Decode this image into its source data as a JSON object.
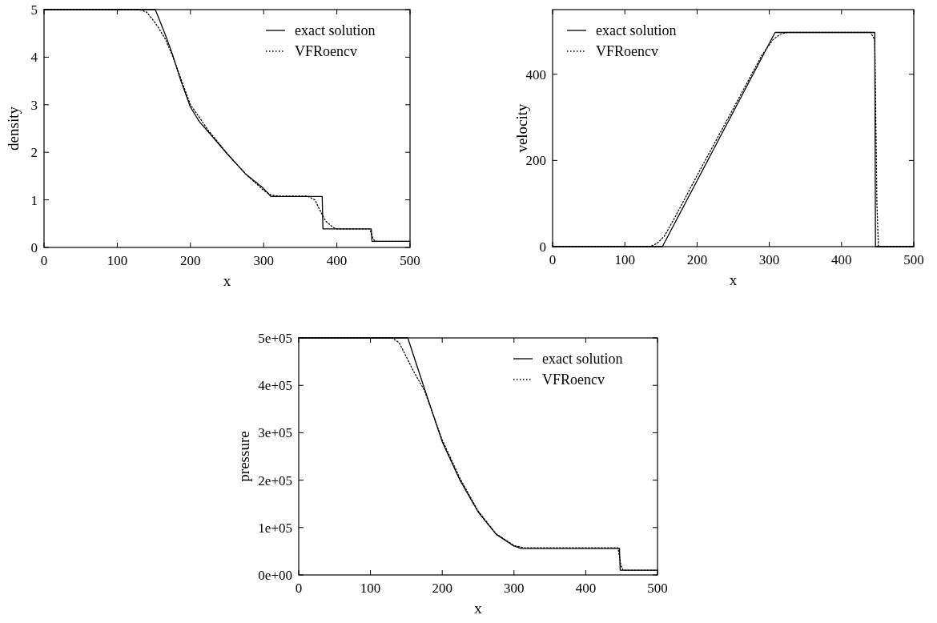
{
  "chart_data": [
    {
      "type": "line",
      "xlabel": "x",
      "ylabel": "density",
      "xlim": [
        0,
        500
      ],
      "ylim": [
        0,
        5
      ],
      "xticks": [
        0,
        100,
        200,
        300,
        400,
        500
      ],
      "yticks": [
        0,
        1,
        2,
        3,
        4,
        5
      ],
      "legend": "top right",
      "grid": false,
      "series": [
        {
          "name": "exact solution",
          "color": "#000000",
          "line_style": "solid",
          "x": [
            0,
            152,
            165,
            175,
            187,
            200,
            212,
            225,
            250,
            275,
            300,
            310,
            380,
            381,
            447,
            448,
            500
          ],
          "values": [
            5,
            5,
            4.5,
            4.08,
            3.5,
            2.95,
            2.65,
            2.42,
            1.97,
            1.55,
            1.24,
            1.07,
            1.07,
            0.39,
            0.39,
            0.13,
            0.13
          ]
        },
        {
          "name": "VFRoencv",
          "color": "#000000",
          "line_style": "dotted",
          "x": [
            0,
            130,
            140,
            148,
            155,
            165,
            175,
            200,
            225,
            250,
            275,
            300,
            310,
            320,
            360,
            370,
            378,
            385,
            395,
            400,
            445,
            449,
            452,
            500
          ],
          "values": [
            5,
            5,
            4.95,
            4.8,
            4.65,
            4.4,
            4.05,
            3,
            2.45,
            1.98,
            1.55,
            1.2,
            1.1,
            1.08,
            1.08,
            1,
            0.75,
            0.55,
            0.42,
            0.39,
            0.39,
            0.2,
            0.13,
            0.13
          ]
        }
      ]
    },
    {
      "type": "line",
      "xlabel": "x",
      "ylabel": "velocity",
      "xlim": [
        0,
        500
      ],
      "ylim": [
        0,
        550
      ],
      "xticks": [
        0,
        100,
        200,
        300,
        400,
        500
      ],
      "yticks": [
        0,
        200,
        400
      ],
      "legend": "top left",
      "grid": false,
      "series": [
        {
          "name": "exact solution",
          "color": "#000000",
          "line_style": "solid",
          "x": [
            0,
            152,
            308,
            446,
            447,
            500
          ],
          "values": [
            0,
            0,
            497,
            497,
            0,
            0
          ]
        },
        {
          "name": "VFRoencv",
          "color": "#000000",
          "line_style": "dotted",
          "x": [
            0,
            135,
            145,
            155,
            170,
            200,
            250,
            290,
            305,
            315,
            325,
            440,
            446,
            449,
            451,
            500
          ],
          "values": [
            0,
            0,
            8,
            25,
            70,
            165,
            320,
            445,
            480,
            493,
            497,
            497,
            480,
            100,
            0,
            0
          ]
        }
      ]
    },
    {
      "type": "line",
      "xlabel": "x",
      "ylabel": "pressure",
      "xlim": [
        0,
        500
      ],
      "ylim": [
        0,
        500000
      ],
      "xticks": [
        0,
        100,
        200,
        300,
        400,
        500
      ],
      "yticks": [
        {
          "value": 0,
          "label": "0e+00"
        },
        {
          "value": 100000,
          "label": "1e+05"
        },
        {
          "value": 200000,
          "label": "2e+05"
        },
        {
          "value": 300000,
          "label": "3e+05"
        },
        {
          "value": 400000,
          "label": "4e+05"
        },
        {
          "value": 500000,
          "label": "5e+05"
        }
      ],
      "legend": "top right",
      "grid": false,
      "series": [
        {
          "name": "exact solution",
          "color": "#000000",
          "line_style": "solid",
          "x": [
            0,
            152,
            175,
            200,
            225,
            250,
            275,
            300,
            310,
            447,
            448,
            500
          ],
          "values": [
            500000,
            500000,
            394000,
            281000,
            199000,
            133000,
            86000,
            61000,
            56000,
            56000,
            10000,
            10000
          ]
        },
        {
          "name": "VFRoencv",
          "color": "#000000",
          "line_style": "dotted",
          "x": [
            0,
            130,
            140,
            150,
            160,
            175,
            200,
            225,
            250,
            275,
            300,
            315,
            445,
            449,
            452,
            500
          ],
          "values": [
            500000,
            500000,
            490000,
            460000,
            430000,
            390000,
            285000,
            203000,
            135000,
            87000,
            62000,
            57000,
            57000,
            20000,
            10000,
            10000
          ]
        }
      ]
    }
  ]
}
